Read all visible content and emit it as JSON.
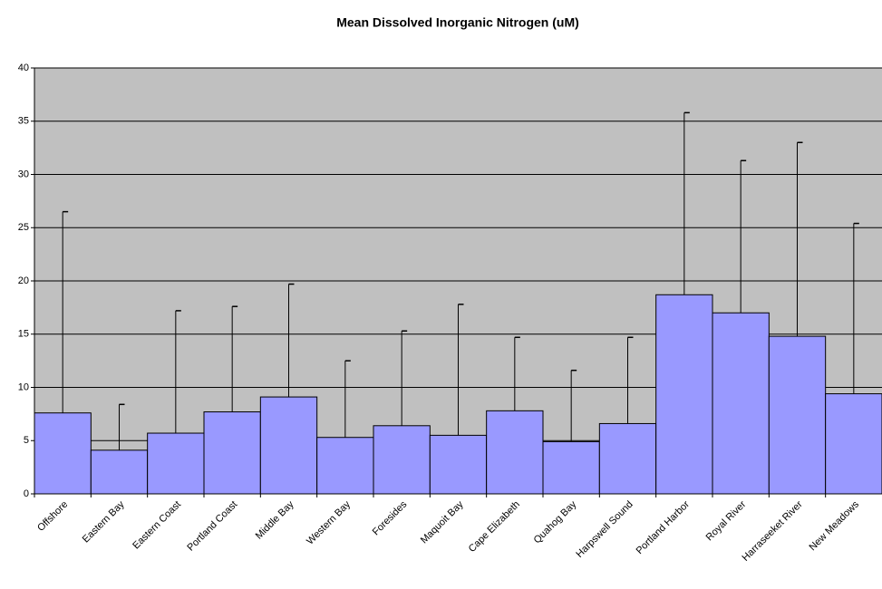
{
  "chart_data": {
    "type": "bar",
    "title": "Mean Dissolved Inorganic Nitrogen (uM)",
    "categories": [
      "Offshore",
      "Eastern Bay",
      "Eastern Coast",
      "Portland Coast",
      "Middle Bay",
      "Western Bay",
      "Foresides",
      "Maquoit Bay",
      "Cape Elizabeth",
      "Quahog Bay",
      "Harpswell Sound",
      "Portland Harbor",
      "Royal River",
      "Harraseeket River",
      "New Meadows"
    ],
    "values": [
      7.6,
      4.1,
      5.7,
      7.7,
      9.1,
      5.3,
      6.4,
      5.5,
      7.8,
      4.9,
      6.6,
      18.7,
      17.0,
      14.8,
      9.4
    ],
    "errors": [
      18.9,
      4.3,
      11.5,
      9.9,
      10.6,
      7.2,
      8.9,
      12.3,
      6.9,
      6.7,
      8.1,
      17.1,
      14.3,
      18.2,
      16.0
    ],
    "color": "#9999ff",
    "ylim": [
      0,
      40
    ],
    "yticks": [
      0,
      5,
      10,
      15,
      20,
      25,
      30,
      35,
      40
    ],
    "grid": true
  }
}
